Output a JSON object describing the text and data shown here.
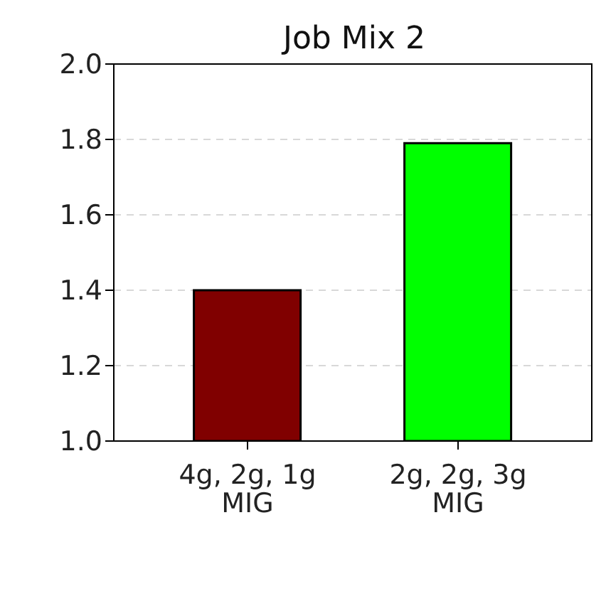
{
  "chart_data": {
    "type": "bar",
    "title": "Job Mix 2",
    "categories": [
      "4g, 2g, 1g MIG",
      "2g, 2g, 3g MIG"
    ],
    "values": [
      1.4,
      1.79
    ],
    "colors": [
      "#800000",
      "#00ff00"
    ],
    "ylim": [
      1.0,
      2.0
    ],
    "yticks": [
      {
        "value": 1.0,
        "label": "1.0"
      },
      {
        "value": 1.2,
        "label": "1.2"
      },
      {
        "value": 1.4,
        "label": "1.4"
      },
      {
        "value": 1.6,
        "label": "1.6"
      },
      {
        "value": 1.8,
        "label": "1.8"
      },
      {
        "value": 2.0,
        "label": "2.0"
      }
    ],
    "grid": "y"
  }
}
